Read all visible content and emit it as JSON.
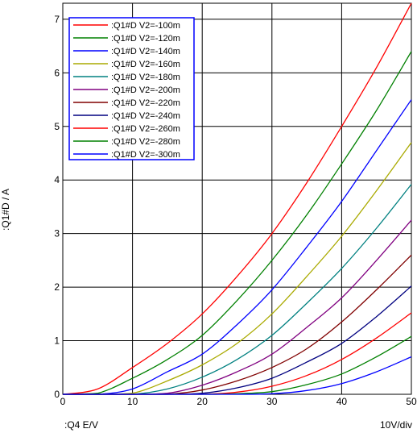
{
  "chart_data": {
    "type": "line",
    "xlabel": ":Q4  E/V",
    "ylabel": ":Q1#D / A",
    "scale_label": "10V/div",
    "xlim": [
      0,
      50
    ],
    "ylim": [
      0,
      7.3
    ],
    "x_ticks": [
      "0",
      "10",
      "20",
      "30",
      "40",
      "50"
    ],
    "y_ticks": [
      "0",
      "1",
      "2",
      "3",
      "4",
      "5",
      "6",
      "7"
    ],
    "grid": true,
    "legend_position": "top-left",
    "x": [
      0,
      5,
      10,
      15,
      20,
      25,
      30,
      35,
      40,
      45,
      50
    ],
    "series": [
      {
        "name": ":Q1#D V2=-100m",
        "color": "#ff0000",
        "values": [
          0,
          0.1,
          0.5,
          0.95,
          1.5,
          2.2,
          3.0,
          3.95,
          5.0,
          6.1,
          7.3
        ]
      },
      {
        "name": ":Q1#D V2=-120m",
        "color": "#008000",
        "values": [
          0,
          0.02,
          0.3,
          0.65,
          1.1,
          1.75,
          2.5,
          3.35,
          4.3,
          5.3,
          6.4
        ]
      },
      {
        "name": ":Q1#D V2=-140m",
        "color": "#0000ff",
        "values": [
          0,
          0,
          0.1,
          0.42,
          0.75,
          1.3,
          1.95,
          2.75,
          3.6,
          4.55,
          5.5
        ]
      },
      {
        "name": ":Q1#D V2=-160m",
        "color": "#aaaa00",
        "values": [
          0,
          0,
          0.02,
          0.25,
          0.55,
          0.95,
          1.5,
          2.2,
          2.95,
          3.8,
          4.7
        ]
      },
      {
        "name": ":Q1#D V2=-180m",
        "color": "#008080",
        "values": [
          0,
          0,
          0,
          0.1,
          0.32,
          0.65,
          1.1,
          1.7,
          2.35,
          3.1,
          3.92
        ]
      },
      {
        "name": ":Q1#D V2=-200m",
        "color": "#800080",
        "values": [
          0,
          0,
          0,
          0.02,
          0.17,
          0.42,
          0.75,
          1.25,
          1.8,
          2.5,
          3.25
        ]
      },
      {
        "name": ":Q1#D V2=-220m",
        "color": "#800000",
        "values": [
          0,
          0,
          0,
          0,
          0.08,
          0.25,
          0.5,
          0.85,
          1.35,
          1.95,
          2.6
        ]
      },
      {
        "name": ":Q1#D V2=-240m",
        "color": "#000080",
        "values": [
          0,
          0,
          0,
          0,
          0.02,
          0.12,
          0.3,
          0.6,
          0.95,
          1.45,
          2.02
        ]
      },
      {
        "name": ":Q1#D V2=-260m",
        "color": "#ff0000",
        "values": [
          0,
          0,
          0,
          0,
          0,
          0.04,
          0.15,
          0.35,
          0.65,
          1.05,
          1.52
        ]
      },
      {
        "name": ":Q1#D V2=-280m",
        "color": "#008000",
        "values": [
          0,
          0,
          0,
          0,
          0,
          0.01,
          0.05,
          0.18,
          0.38,
          0.7,
          1.08
        ]
      },
      {
        "name": ":Q1#D V2=-300m",
        "color": "#0000ff",
        "values": [
          0,
          0,
          0,
          0,
          0,
          0,
          0.01,
          0.07,
          0.2,
          0.42,
          0.7
        ]
      }
    ]
  }
}
